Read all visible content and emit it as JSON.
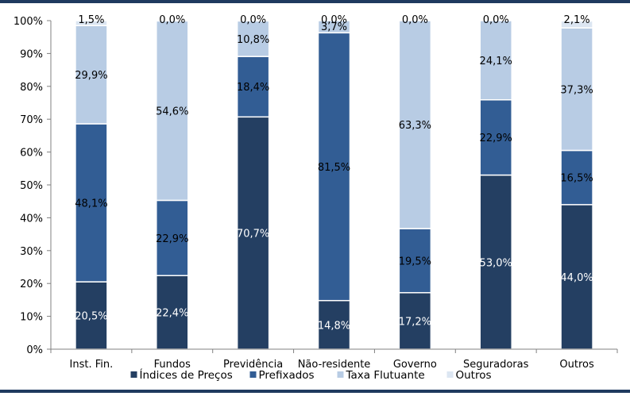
{
  "chart_data": {
    "type": "bar",
    "stacked": true,
    "title": "",
    "xlabel": "",
    "ylabel": "",
    "ylim": [
      0,
      100
    ],
    "yticks": [
      "0%",
      "10%",
      "20%",
      "30%",
      "40%",
      "50%",
      "60%",
      "70%",
      "80%",
      "90%",
      "100%"
    ],
    "categories": [
      "Inst. Fin.",
      "Fundos",
      "Previdência",
      "Não-residente",
      "Governo",
      "Seguradoras",
      "Outros"
    ],
    "series": [
      {
        "name": "Índices de Preços",
        "color": "#243f62",
        "label_color": "#ffffff",
        "values": [
          20.5,
          22.4,
          70.7,
          14.8,
          17.2,
          53.0,
          44.0
        ],
        "labels": [
          "20,5%",
          "22,4%",
          "70,7%",
          "14,8%",
          "17,2%",
          "53,0%",
          "44,0%"
        ]
      },
      {
        "name": "Prefixados",
        "color": "#325d94",
        "label_color": "#000000",
        "values": [
          48.1,
          22.9,
          18.4,
          81.5,
          19.5,
          22.9,
          16.5
        ],
        "labels": [
          "48,1%",
          "22,9%",
          "18,4%",
          "81,5%",
          "19,5%",
          "22,9%",
          "16,5%"
        ]
      },
      {
        "name": "Taxa Flutuante",
        "color": "#b8cce4",
        "label_color": "#000000",
        "values": [
          29.9,
          54.6,
          10.8,
          3.7,
          63.3,
          24.1,
          37.3
        ],
        "labels": [
          "29,9%",
          "54,6%",
          "10,8%",
          "3,7%",
          "63,3%",
          "24,1%",
          "37,3%"
        ]
      },
      {
        "name": "Outros",
        "color": "#dce6f2",
        "label_color": "#000000",
        "values": [
          1.5,
          0.0,
          0.0,
          0.0,
          0.0,
          0.0,
          2.1
        ],
        "labels": [
          "1,5%",
          "0,0%",
          "0,0%",
          "0,0%",
          "0,0%",
          "0,0%",
          "2,1%"
        ]
      }
    ],
    "grid": false,
    "legend_position": "bottom"
  }
}
